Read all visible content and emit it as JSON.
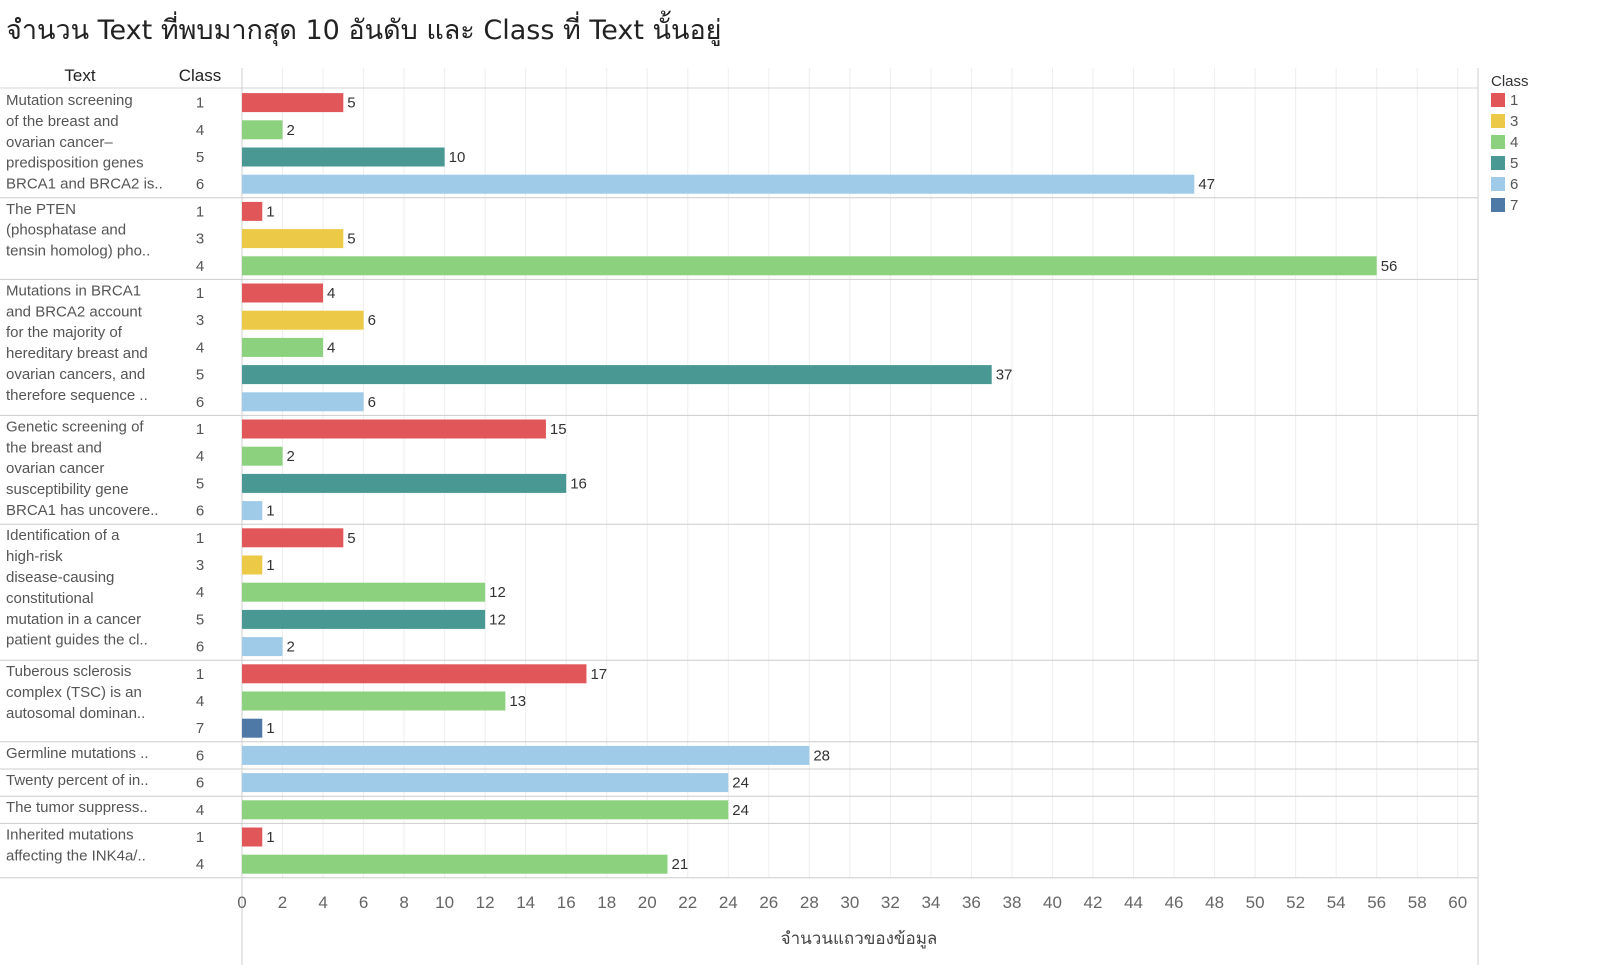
{
  "title": "จำนวน Text ที่พบมากสุด 10 อันดับ และ Class ที่ Text นั้นอยู่",
  "chart_data": {
    "type": "bar",
    "orientation": "horizontal",
    "title": "จำนวน Text ที่พบมากสุด 10 อันดับ และ Class ที่ Text นั้นอยู่",
    "row_headers": [
      "Text",
      "Class"
    ],
    "xlabel": "จำนวนแถวของข้อมูล",
    "xlim": [
      0,
      61
    ],
    "x_ticks": [
      0,
      2,
      4,
      6,
      8,
      10,
      12,
      14,
      16,
      18,
      20,
      22,
      24,
      26,
      28,
      30,
      32,
      34,
      36,
      38,
      40,
      42,
      44,
      46,
      48,
      50,
      52,
      54,
      56,
      58,
      60
    ],
    "grid": true,
    "legend": {
      "title": "Class",
      "placement": "right",
      "items": [
        {
          "label": "1",
          "color": "#e15759"
        },
        {
          "label": "3",
          "color": "#edc948"
        },
        {
          "label": "4",
          "color": "#8cd17d"
        },
        {
          "label": "5",
          "color": "#499894"
        },
        {
          "label": "6",
          "color": "#a0cbe8"
        },
        {
          "label": "7",
          "color": "#4e79a7"
        }
      ]
    },
    "groups": [
      {
        "text_lines": [
          "Mutation screening",
          "of the breast and",
          "ovarian cancer–",
          "predisposition genes",
          "BRCA1 and BRCA2 is.."
        ],
        "bars": [
          {
            "class": "1",
            "value": 5
          },
          {
            "class": "4",
            "value": 2
          },
          {
            "class": "5",
            "value": 10
          },
          {
            "class": "6",
            "value": 47
          }
        ]
      },
      {
        "text_lines": [
          "The PTEN",
          "(phosphatase and",
          "tensin homolog) pho.."
        ],
        "bars": [
          {
            "class": "1",
            "value": 1
          },
          {
            "class": "3",
            "value": 5
          },
          {
            "class": "4",
            "value": 56
          }
        ]
      },
      {
        "text_lines": [
          "Mutations in BRCA1",
          "and BRCA2 account",
          "for the majority of",
          "hereditary breast and",
          "ovarian cancers, and",
          "therefore sequence .."
        ],
        "bars": [
          {
            "class": "1",
            "value": 4
          },
          {
            "class": "3",
            "value": 6
          },
          {
            "class": "4",
            "value": 4
          },
          {
            "class": "5",
            "value": 37
          },
          {
            "class": "6",
            "value": 6
          }
        ]
      },
      {
        "text_lines": [
          "Genetic screening of",
          "the breast and",
          "ovarian cancer",
          "susceptibility gene",
          "BRCA1 has uncovere.."
        ],
        "bars": [
          {
            "class": "1",
            "value": 15
          },
          {
            "class": "4",
            "value": 2
          },
          {
            "class": "5",
            "value": 16
          },
          {
            "class": "6",
            "value": 1
          }
        ]
      },
      {
        "text_lines": [
          "Identification of a",
          "high-risk",
          "disease-causing",
          "constitutional",
          "mutation in a cancer",
          "patient guides the cl.."
        ],
        "bars": [
          {
            "class": "1",
            "value": 5
          },
          {
            "class": "3",
            "value": 1
          },
          {
            "class": "4",
            "value": 12
          },
          {
            "class": "5",
            "value": 12
          },
          {
            "class": "6",
            "value": 2
          }
        ]
      },
      {
        "text_lines": [
          "Tuberous sclerosis",
          "complex (TSC) is an",
          "autosomal dominan.."
        ],
        "bars": [
          {
            "class": "1",
            "value": 17
          },
          {
            "class": "4",
            "value": 13
          },
          {
            "class": "7",
            "value": 1
          }
        ]
      },
      {
        "text_lines": [
          "Germline mutations .."
        ],
        "bars": [
          {
            "class": "6",
            "value": 28
          }
        ]
      },
      {
        "text_lines": [
          "Twenty percent of in.."
        ],
        "bars": [
          {
            "class": "6",
            "value": 24
          }
        ]
      },
      {
        "text_lines": [
          "The tumor suppress.."
        ],
        "bars": [
          {
            "class": "4",
            "value": 24
          }
        ]
      },
      {
        "text_lines": [
          "Inherited mutations",
          "affecting the INK4a/.."
        ],
        "bars": [
          {
            "class": "1",
            "value": 1
          },
          {
            "class": "4",
            "value": 21
          }
        ]
      }
    ]
  }
}
